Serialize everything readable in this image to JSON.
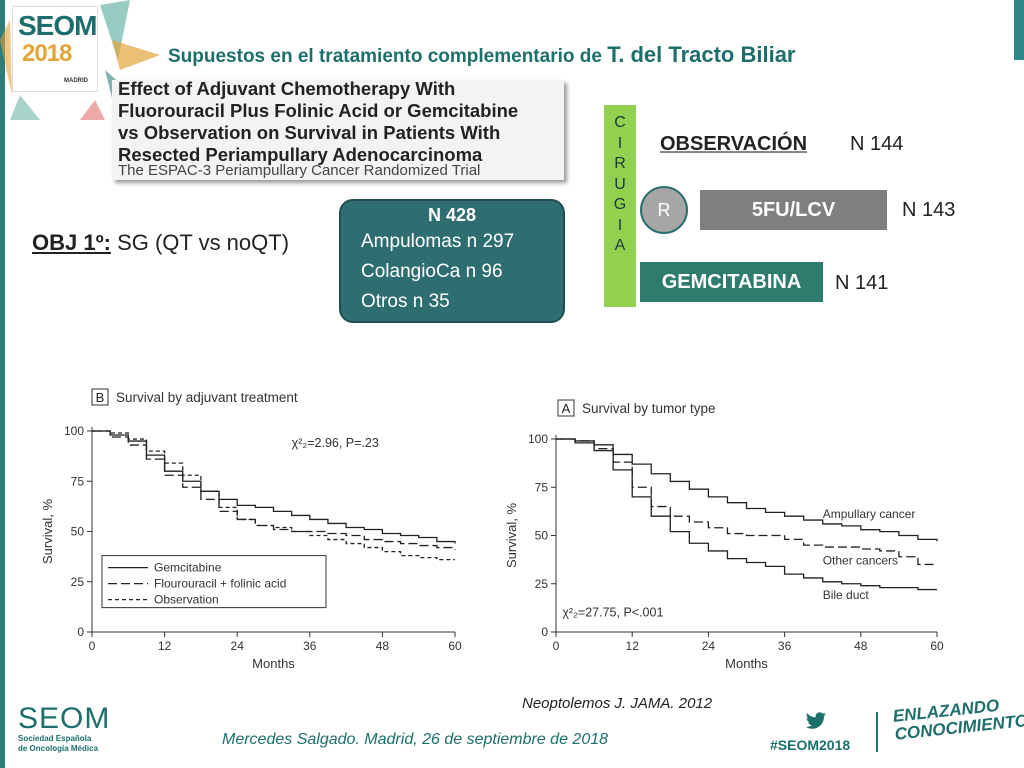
{
  "header": {
    "logo_brand": "SEOM",
    "logo_year": "2018",
    "logo_city": "MADRID",
    "title_prefix": "Supuestos en el tratamiento complementario de ",
    "title_emph": "T. del Tracto Biliar"
  },
  "paper": {
    "title_lines": [
      "Effect of Adjuvant Chemotherapy With",
      "Fluorouracil Plus Folinic Acid or Gemcitabine",
      "vs Observation on Survival in Patients With",
      "Resected Periampullary Adenocarcinoma"
    ],
    "subtitle": "The ESPAC-3 Periampullary Cancer Randomized Trial"
  },
  "objective": {
    "label": "OBJ 1º:",
    "text": "SG  (QT vs noQT)"
  },
  "cohort": {
    "title": "N 428",
    "lines": [
      "Ampulomas n 297",
      "ColangioCa n 96",
      "Otros  n 35"
    ]
  },
  "design": {
    "cirugia_letters": [
      "C",
      "I",
      "R",
      "U",
      "G",
      "I",
      "A"
    ],
    "randomization": "R",
    "arms": [
      {
        "label": "OBSERVACIÓN",
        "n": "N 144"
      },
      {
        "label": "5FU/LCV",
        "n": "N 143"
      },
      {
        "label": "GEMCITABINA",
        "n": "N 141"
      }
    ]
  },
  "chart_data": [
    {
      "type": "line",
      "panel": "B",
      "title": "Survival by adjuvant treatment",
      "xlabel": "Months",
      "ylabel": "Survival, %",
      "xlim": [
        0,
        60
      ],
      "ylim": [
        0,
        100
      ],
      "xticks": [
        0,
        12,
        24,
        36,
        48,
        60
      ],
      "yticks": [
        0,
        25,
        50,
        75,
        100
      ],
      "annotation": "χ²₂=2.96, P=.23",
      "legend": "bottom-left",
      "series": [
        {
          "name": "Gemcitabine",
          "dash": "solid",
          "x": [
            0,
            3,
            6,
            9,
            12,
            15,
            18,
            21,
            24,
            27,
            30,
            33,
            36,
            39,
            42,
            45,
            48,
            51,
            54,
            57,
            60
          ],
          "y": [
            100,
            98,
            95,
            88,
            80,
            75,
            70,
            66,
            63,
            62,
            60,
            58,
            56,
            54,
            52,
            51,
            49,
            48,
            47,
            45,
            44
          ]
        },
        {
          "name": "Flourouracil + folinic acid",
          "dash": "long",
          "x": [
            0,
            3,
            6,
            9,
            12,
            15,
            18,
            21,
            24,
            27,
            30,
            33,
            36,
            39,
            42,
            45,
            48,
            51,
            54,
            57,
            60
          ],
          "y": [
            100,
            97,
            93,
            86,
            78,
            72,
            66,
            60,
            56,
            53,
            51,
            50,
            50,
            49,
            48,
            46,
            45,
            44,
            43,
            42,
            41
          ]
        },
        {
          "name": "Observation",
          "dash": "short",
          "x": [
            0,
            3,
            6,
            9,
            12,
            15,
            18,
            21,
            24,
            27,
            30,
            33,
            36,
            39,
            42,
            45,
            48,
            51,
            54,
            57,
            60
          ],
          "y": [
            100,
            99,
            96,
            90,
            84,
            78,
            70,
            62,
            56,
            53,
            52,
            50,
            48,
            46,
            44,
            42,
            40,
            38,
            37,
            36,
            36
          ]
        }
      ]
    },
    {
      "type": "line",
      "panel": "A",
      "title": "Survival by tumor type",
      "xlabel": "Months",
      "ylabel": "Survival, %",
      "xlim": [
        0,
        60
      ],
      "ylim": [
        0,
        100
      ],
      "xticks": [
        0,
        12,
        24,
        36,
        48,
        60
      ],
      "yticks": [
        0,
        25,
        50,
        75,
        100
      ],
      "annotation": "χ²₂=27.75, P<.001",
      "series": [
        {
          "name": "Ampullary cancer",
          "dash": "solid",
          "x": [
            0,
            3,
            6,
            9,
            12,
            15,
            18,
            21,
            24,
            27,
            30,
            33,
            36,
            39,
            42,
            45,
            48,
            51,
            54,
            57,
            60
          ],
          "y": [
            100,
            99,
            97,
            92,
            87,
            82,
            78,
            74,
            70,
            67,
            64,
            62,
            60,
            58,
            56,
            55,
            53,
            52,
            50,
            48,
            47
          ]
        },
        {
          "name": "Other cancers",
          "dash": "long",
          "x": [
            0,
            3,
            6,
            9,
            12,
            15,
            18,
            21,
            24,
            27,
            30,
            33,
            36,
            39,
            42,
            45,
            48,
            51,
            54,
            57,
            60
          ],
          "y": [
            100,
            99,
            95,
            88,
            75,
            65,
            60,
            57,
            54,
            51,
            50,
            50,
            48,
            45,
            44,
            44,
            43,
            42,
            39,
            35,
            35
          ]
        },
        {
          "name": "Bile duct",
          "dash": "solid",
          "x": [
            0,
            3,
            6,
            9,
            12,
            15,
            18,
            21,
            24,
            27,
            30,
            33,
            36,
            39,
            42,
            45,
            48,
            51,
            54,
            57,
            60
          ],
          "y": [
            100,
            98,
            94,
            84,
            70,
            60,
            52,
            46,
            42,
            38,
            36,
            34,
            30,
            28,
            26,
            25,
            24,
            23,
            23,
            22,
            22
          ]
        }
      ]
    }
  ],
  "footer": {
    "citation": "Neoptolemos J. JAMA. 2012",
    "author": "Mercedes Salgado. Madrid, 26 de septiembre de 2018",
    "org_name": "SEOM",
    "org_sub1": "Sociedad Española",
    "org_sub2": "de Oncología Médica",
    "hashtag": "#SEOM2018",
    "slogan_line1": "ENLAZANDO",
    "slogan_line2": "CONOCIMIENTO"
  },
  "colors": {
    "teal": "#1d6f6c",
    "cohort_box": "#2e6e70",
    "cirugia": "#92d050",
    "arm_grey": "#7f7f7f",
    "arm_green": "#2e7c6e"
  }
}
